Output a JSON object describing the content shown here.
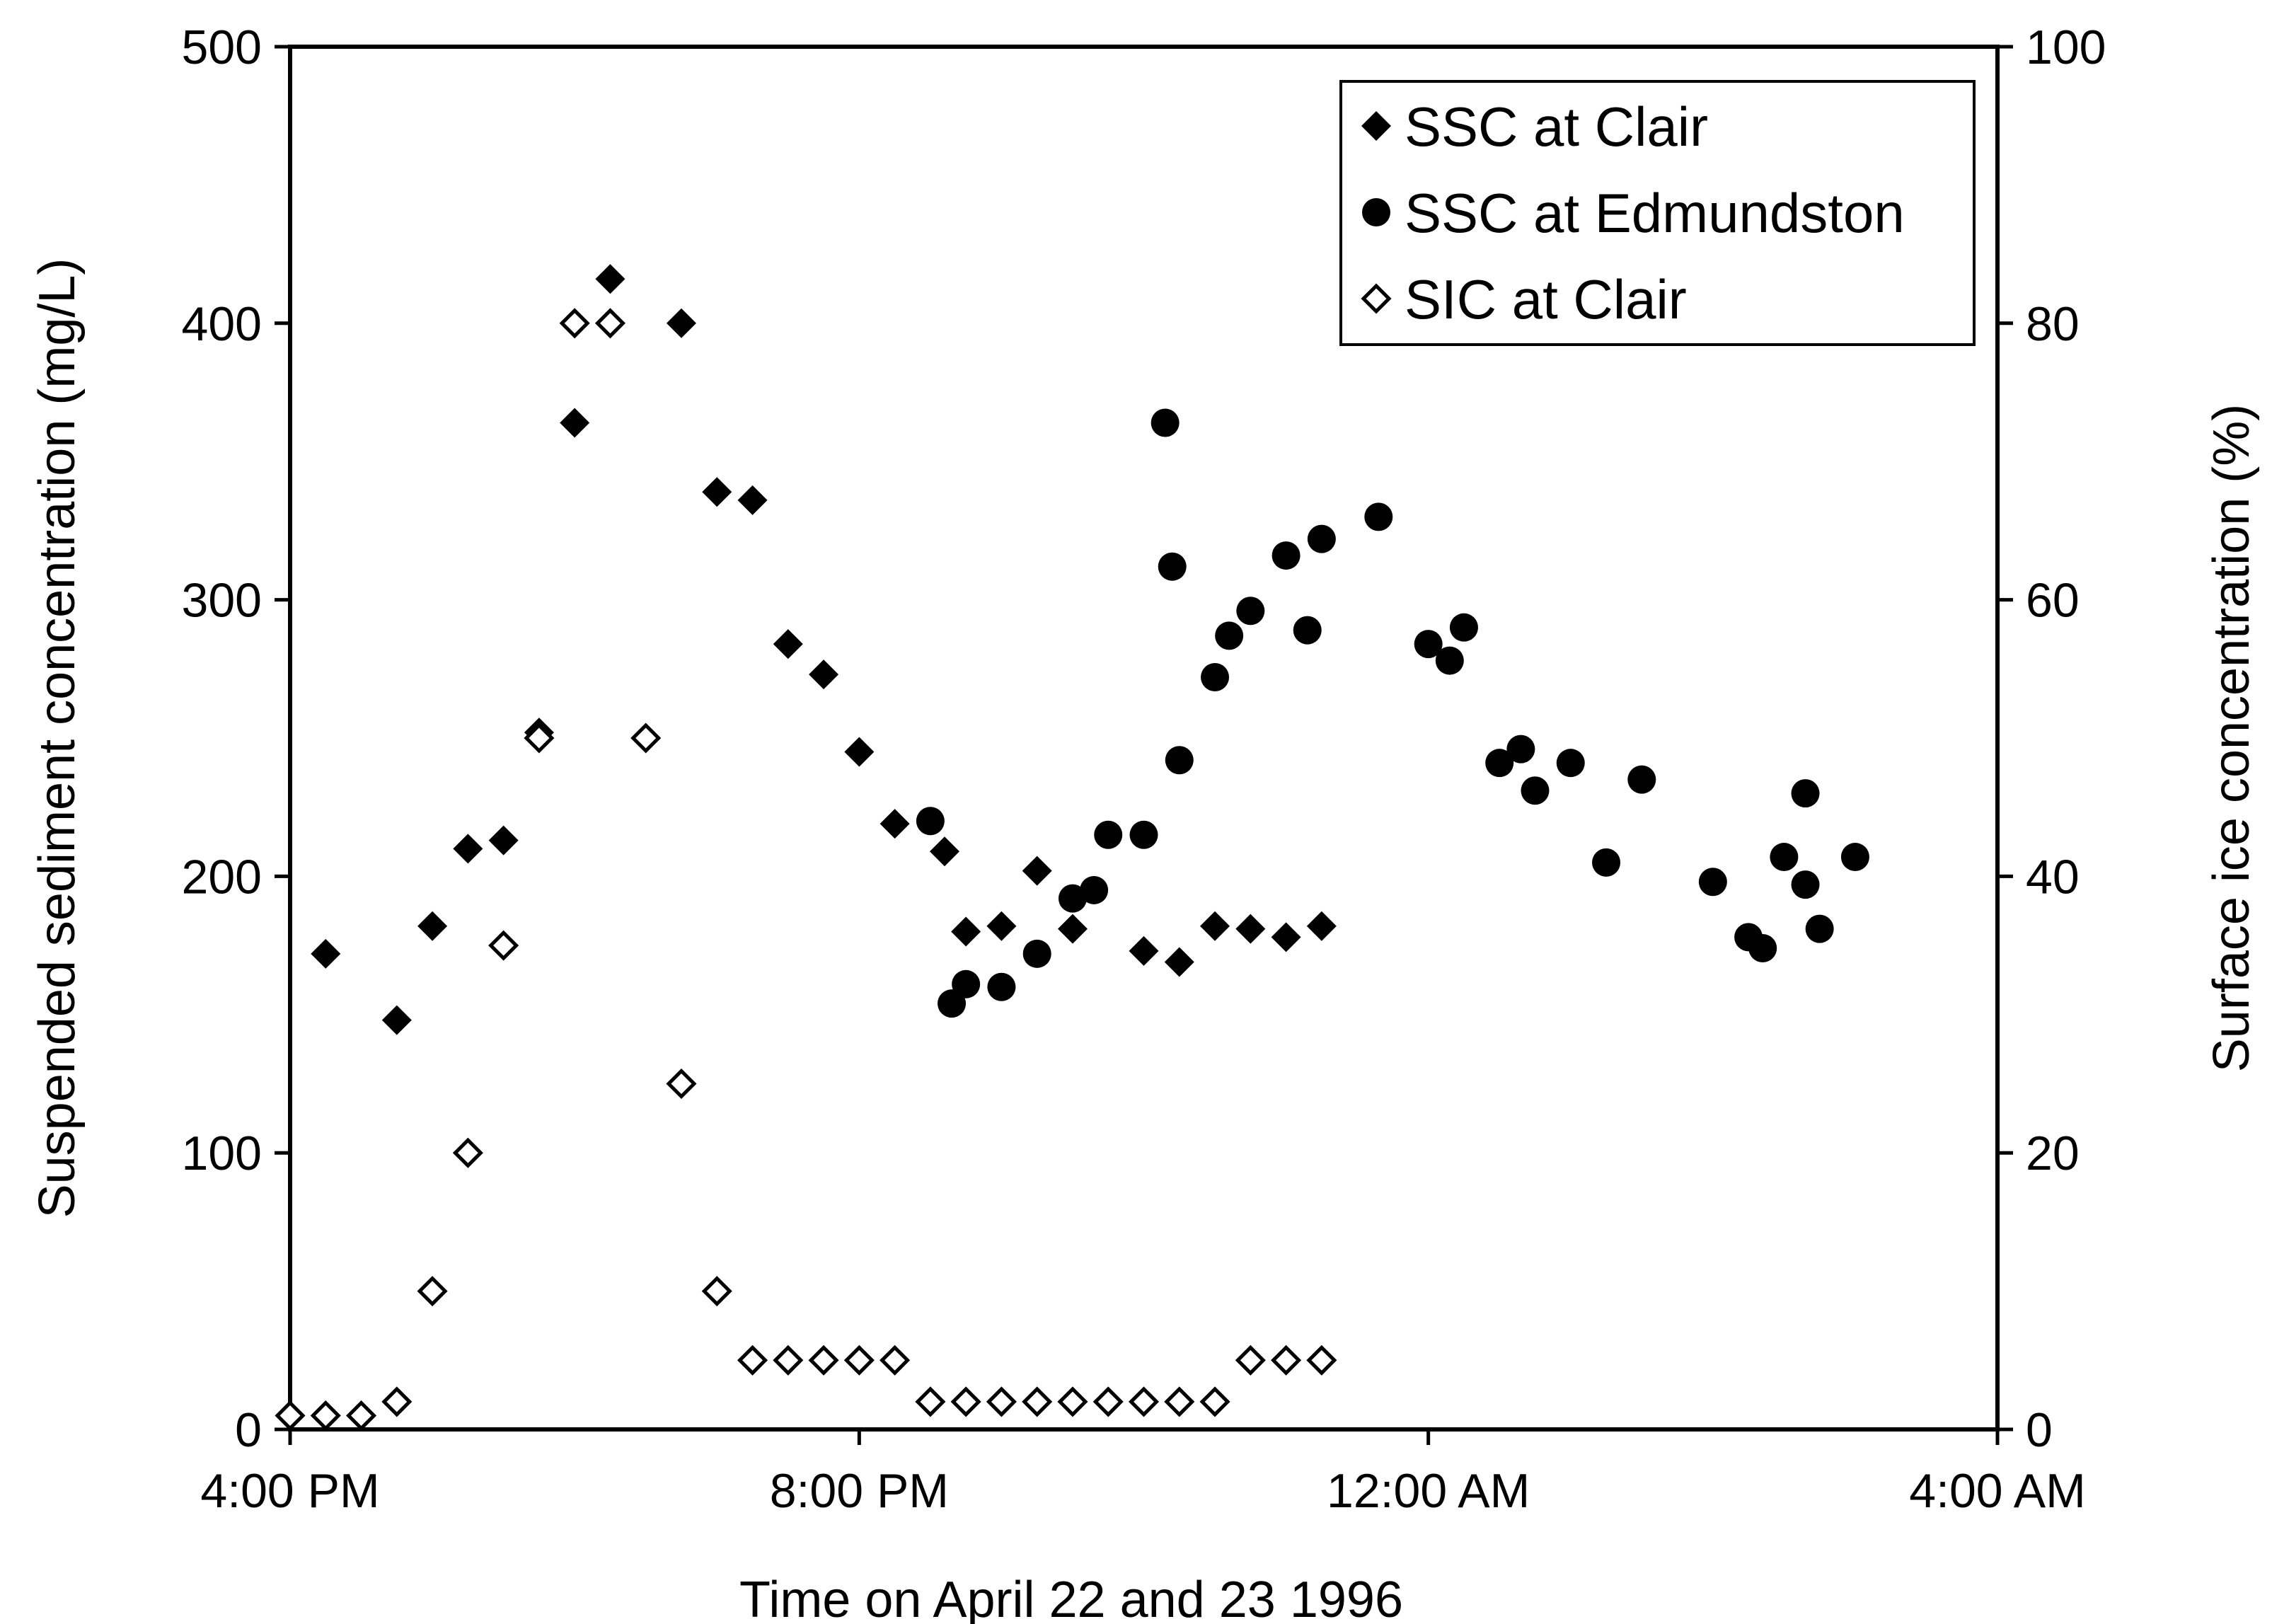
{
  "chart_data": {
    "type": "scatter",
    "title": "",
    "xlabel": "Time on April 22 and 23 1996",
    "ylabel": "Suspended sediment concentration  (mg/L)",
    "y2label": "Surface ice concentration  (%)",
    "x_unit": "hours after 4:00 PM on April 22 1996",
    "xlim": [
      0,
      12
    ],
    "ylim": [
      0,
      500
    ],
    "y2lim": [
      0,
      100
    ],
    "x_ticks": [
      {
        "value": 0,
        "label": "4:00 PM"
      },
      {
        "value": 4,
        "label": "8:00 PM"
      },
      {
        "value": 8,
        "label": "12:00 AM"
      },
      {
        "value": 12,
        "label": "4:00 AM"
      }
    ],
    "y_ticks": [
      0,
      100,
      200,
      300,
      400,
      500
    ],
    "y2_ticks": [
      0,
      20,
      40,
      60,
      80,
      100
    ],
    "grid": false,
    "legend_position": "top-right",
    "series": [
      {
        "name": "SSC at Clair",
        "marker": "diamond-filled",
        "axis": "left",
        "points": [
          [
            0.25,
            172
          ],
          [
            0.75,
            148
          ],
          [
            1.0,
            182
          ],
          [
            1.25,
            210
          ],
          [
            1.5,
            213
          ],
          [
            1.75,
            252
          ],
          [
            2.0,
            364
          ],
          [
            2.25,
            416
          ],
          [
            2.75,
            400
          ],
          [
            3.0,
            339
          ],
          [
            3.25,
            336
          ],
          [
            3.5,
            284
          ],
          [
            3.75,
            273
          ],
          [
            4.0,
            245
          ],
          [
            4.25,
            219
          ],
          [
            4.6,
            209
          ],
          [
            4.75,
            180
          ],
          [
            5.0,
            182
          ],
          [
            5.25,
            202
          ],
          [
            5.5,
            181
          ],
          [
            6.0,
            173
          ],
          [
            6.25,
            169
          ],
          [
            6.5,
            182
          ],
          [
            6.75,
            181
          ],
          [
            7.0,
            178
          ],
          [
            7.25,
            182
          ]
        ]
      },
      {
        "name": "SSC at Edmundston",
        "marker": "circle-filled",
        "axis": "left",
        "points": [
          [
            4.5,
            220
          ],
          [
            4.65,
            154
          ],
          [
            4.75,
            161
          ],
          [
            5.0,
            160
          ],
          [
            5.25,
            172
          ],
          [
            5.5,
            192
          ],
          [
            5.65,
            195
          ],
          [
            5.75,
            215
          ],
          [
            6.0,
            215
          ],
          [
            6.15,
            364
          ],
          [
            6.2,
            312
          ],
          [
            6.25,
            242
          ],
          [
            6.5,
            272
          ],
          [
            6.6,
            287
          ],
          [
            6.75,
            296
          ],
          [
            7.0,
            316
          ],
          [
            7.15,
            289
          ],
          [
            7.25,
            322
          ],
          [
            7.65,
            330
          ],
          [
            8.0,
            284
          ],
          [
            8.15,
            278
          ],
          [
            8.25,
            290
          ],
          [
            8.5,
            241
          ],
          [
            8.65,
            246
          ],
          [
            8.75,
            231
          ],
          [
            9.0,
            241
          ],
          [
            9.25,
            205
          ],
          [
            9.5,
            235
          ],
          [
            10.0,
            198
          ],
          [
            10.25,
            178
          ],
          [
            10.35,
            174
          ],
          [
            10.5,
            207
          ],
          [
            10.65,
            197
          ],
          [
            10.65,
            230
          ],
          [
            10.75,
            181
          ],
          [
            11.0,
            207
          ]
        ]
      },
      {
        "name": "SIC at Clair",
        "marker": "diamond-open",
        "axis": "right",
        "points": [
          [
            0,
            1
          ],
          [
            0.25,
            1
          ],
          [
            0.5,
            1
          ],
          [
            0.75,
            2
          ],
          [
            1.0,
            10
          ],
          [
            1.25,
            20
          ],
          [
            1.5,
            35
          ],
          [
            1.75,
            50
          ],
          [
            2.0,
            80
          ],
          [
            2.25,
            80
          ],
          [
            2.5,
            50
          ],
          [
            2.75,
            25
          ],
          [
            3.0,
            10
          ],
          [
            3.25,
            5
          ],
          [
            3.5,
            5
          ],
          [
            3.75,
            5
          ],
          [
            4.0,
            5
          ],
          [
            4.25,
            5
          ],
          [
            4.5,
            2
          ],
          [
            4.75,
            2
          ],
          [
            5.0,
            2
          ],
          [
            5.25,
            2
          ],
          [
            5.5,
            2
          ],
          [
            5.75,
            2
          ],
          [
            6.0,
            2
          ],
          [
            6.25,
            2
          ],
          [
            6.5,
            2
          ],
          [
            6.75,
            5
          ],
          [
            7.0,
            5
          ],
          [
            7.25,
            5
          ]
        ]
      }
    ]
  }
}
